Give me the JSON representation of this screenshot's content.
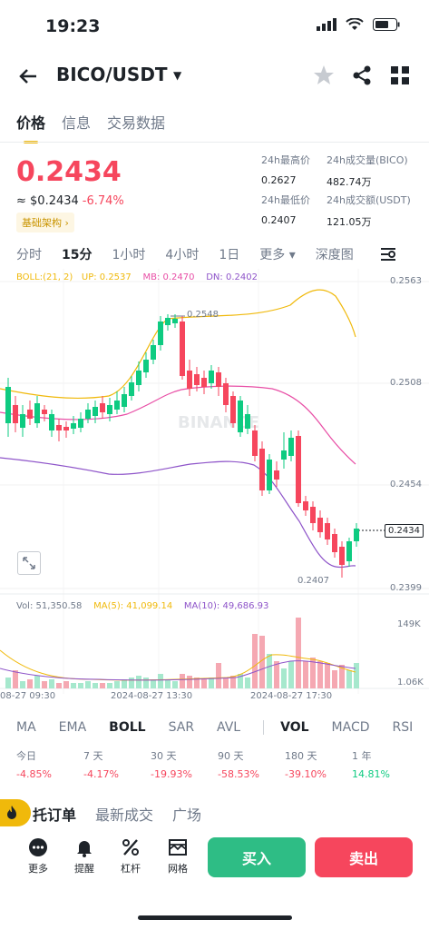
{
  "status": {
    "time": "19:23"
  },
  "header": {
    "pair": "BICO/USDT"
  },
  "tabs": [
    "价格",
    "信息",
    "交易数据"
  ],
  "price": {
    "last": "0.2434",
    "usd": "≈ $0.2434",
    "change": "-6.74%",
    "tag": "基础架构 ›"
  },
  "stats": {
    "high_label": "24h最高价",
    "high": "0.2627",
    "vol_base_label": "24h成交量(BICO)",
    "vol_base": "482.74万",
    "low_label": "24h最低价",
    "low": "0.2407",
    "vol_quote_label": "24h成交额(USDT)",
    "vol_quote": "121.05万"
  },
  "intervals": [
    "分时",
    "15分",
    "1小时",
    "4小时",
    "1日",
    "更多 ▾",
    "深度图"
  ],
  "chart": {
    "boll_label": "BOLL:(21, 2)",
    "up": "UP: 0.2537",
    "mb": "MB: 0.2470",
    "dn": "DN: 0.2402",
    "price_axis": [
      "0.2563",
      "0.2508",
      "0.2454",
      "0.2399"
    ],
    "last_price_tag": "0.2434",
    "high_marker": "0.2548",
    "low_marker": "0.2407",
    "watermark": "BINANCE",
    "vol_label": "Vol: 51,350.58",
    "ma5": "MA(5): 41,099.14",
    "ma10": "MA(10): 49,686.93",
    "vol_axis": [
      "149K",
      "1.06K"
    ],
    "time_axis": [
      "08-27 09:30",
      "2024-08-27 13:30",
      "2024-08-27 17:30"
    ],
    "colors": {
      "up": "#0ecb81",
      "down": "#f6465d",
      "boll_up": "#f0b90b",
      "boll_mb": "#e84fa6",
      "boll_dn": "#8e54c9"
    }
  },
  "indicators": [
    "MA",
    "EMA",
    "BOLL",
    "SAR",
    "AVL",
    "VOL",
    "MACD",
    "RSI"
  ],
  "performance": [
    {
      "label": "今日",
      "value": "-4.85%"
    },
    {
      "label": "7 天",
      "value": "-4.17%"
    },
    {
      "label": "30 天",
      "value": "-19.93%"
    },
    {
      "label": "90 天",
      "value": "-58.53%"
    },
    {
      "label": "180 天",
      "value": "-39.10%"
    },
    {
      "label": "1 年",
      "value": "14.81%"
    }
  ],
  "bottom_tabs": [
    "托订单",
    "最新成交",
    "广场"
  ],
  "actions": {
    "more": "更多",
    "alert": "提醒",
    "leverage": "杠杆",
    "grid": "网格",
    "buy": "买入",
    "sell": "卖出"
  }
}
